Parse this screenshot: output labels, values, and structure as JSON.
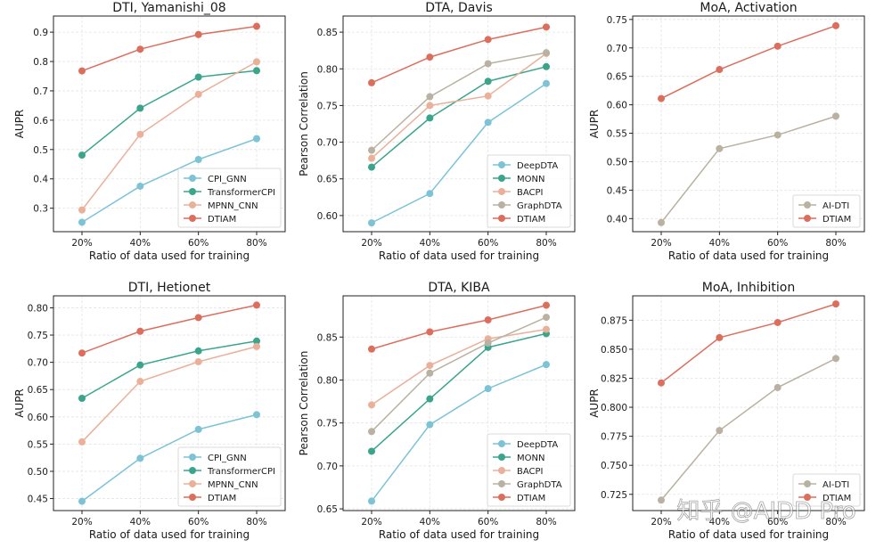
{
  "colors": {
    "CPI_GNN": "#7cc3d6",
    "DeepDTA": "#7cc3d6",
    "TransformerCPI": "#3aa58b",
    "MONN": "#3aa58b",
    "MPNN_CNN": "#eab09a",
    "BACPI": "#eab09a",
    "GraphDTA": "#b9b2a2",
    "AI-DTI": "#b9b2a2",
    "DTIAM": "#dc6e5e"
  },
  "watermark": "知乎 @AIDD Pro",
  "chart_data": [
    {
      "type": "line",
      "title": "DTI, Yamanishi_08",
      "xlabel": "Ratio of data used for training",
      "ylabel": "AUPR",
      "categories": [
        "20%",
        "40%",
        "60%",
        "80%"
      ],
      "ylim": [
        0.22,
        0.955
      ],
      "yticks": [
        0.3,
        0.4,
        0.5,
        0.6,
        0.7,
        0.8,
        0.9
      ],
      "ytick_labels": [
        "0.3",
        "0.4",
        "0.5",
        "0.6",
        "0.7",
        "0.8",
        "0.9"
      ],
      "grid": true,
      "legend": "lower-right",
      "series": [
        {
          "name": "CPI_GNN",
          "values": [
            0.252,
            0.375,
            0.466,
            0.537
          ]
        },
        {
          "name": "TransformerCPI",
          "values": [
            0.481,
            0.641,
            0.747,
            0.769
          ]
        },
        {
          "name": "MPNN_CNN",
          "values": [
            0.294,
            0.552,
            0.688,
            0.799
          ]
        },
        {
          "name": "DTIAM",
          "values": [
            0.768,
            0.842,
            0.892,
            0.92
          ]
        }
      ]
    },
    {
      "type": "line",
      "title": "DTA, Davis",
      "xlabel": "Ratio of data used for training",
      "ylabel": "Pearson Correlation",
      "categories": [
        "20%",
        "40%",
        "60%",
        "80%"
      ],
      "ylim": [
        0.578,
        0.872
      ],
      "yticks": [
        0.6,
        0.65,
        0.7,
        0.75,
        0.8,
        0.85
      ],
      "ytick_labels": [
        "0.60",
        "0.65",
        "0.70",
        "0.75",
        "0.80",
        "0.85"
      ],
      "grid": true,
      "legend": "lower-right",
      "series": [
        {
          "name": "DeepDTA",
          "values": [
            0.59,
            0.63,
            0.727,
            0.78
          ]
        },
        {
          "name": "MONN",
          "values": [
            0.666,
            0.733,
            0.783,
            0.803
          ]
        },
        {
          "name": "BACPI",
          "values": [
            0.678,
            0.75,
            0.763,
            0.821
          ]
        },
        {
          "name": "GraphDTA",
          "values": [
            0.689,
            0.762,
            0.807,
            0.822
          ]
        },
        {
          "name": "DTIAM",
          "values": [
            0.781,
            0.816,
            0.84,
            0.857
          ]
        }
      ]
    },
    {
      "type": "line",
      "title": "MoA, Activation",
      "xlabel": "Ratio of data used for training",
      "ylabel": "AUPR",
      "categories": [
        "20%",
        "40%",
        "60%",
        "80%"
      ],
      "ylim": [
        0.377,
        0.756
      ],
      "yticks": [
        0.4,
        0.45,
        0.5,
        0.55,
        0.6,
        0.65,
        0.7,
        0.75
      ],
      "ytick_labels": [
        "0.40",
        "0.45",
        "0.50",
        "0.55",
        "0.60",
        "0.65",
        "0.70",
        "0.75"
      ],
      "grid": true,
      "legend": "lower-right",
      "series": [
        {
          "name": "AI-DTI",
          "values": [
            0.393,
            0.523,
            0.547,
            0.58
          ]
        },
        {
          "name": "DTIAM",
          "values": [
            0.611,
            0.662,
            0.703,
            0.739
          ]
        }
      ]
    },
    {
      "type": "line",
      "title": "DTI, Hetionet",
      "xlabel": "Ratio of data used for training",
      "ylabel": "AUPR",
      "categories": [
        "20%",
        "40%",
        "60%",
        "80%"
      ],
      "ylim": [
        0.428,
        0.822
      ],
      "yticks": [
        0.45,
        0.5,
        0.55,
        0.6,
        0.65,
        0.7,
        0.75,
        0.8
      ],
      "ytick_labels": [
        "0.45",
        "0.50",
        "0.55",
        "0.60",
        "0.65",
        "0.70",
        "0.75",
        "0.80"
      ],
      "grid": true,
      "legend": "lower-right",
      "series": [
        {
          "name": "CPI_GNN",
          "values": [
            0.445,
            0.524,
            0.577,
            0.604
          ]
        },
        {
          "name": "TransformerCPI",
          "values": [
            0.634,
            0.695,
            0.721,
            0.739
          ]
        },
        {
          "name": "MPNN_CNN",
          "values": [
            0.554,
            0.665,
            0.701,
            0.729
          ]
        },
        {
          "name": "DTIAM",
          "values": [
            0.717,
            0.757,
            0.782,
            0.805
          ]
        }
      ]
    },
    {
      "type": "line",
      "title": "DTA, KIBA",
      "xlabel": "Ratio of data used for training",
      "ylabel": "Pearson Correlation",
      "categories": [
        "20%",
        "40%",
        "60%",
        "80%"
      ],
      "ylim": [
        0.648,
        0.898
      ],
      "yticks": [
        0.65,
        0.7,
        0.75,
        0.8,
        0.85
      ],
      "ytick_labels": [
        "0.65",
        "0.70",
        "0.75",
        "0.80",
        "0.85"
      ],
      "grid": true,
      "legend": "lower-right",
      "series": [
        {
          "name": "DeepDTA",
          "values": [
            0.659,
            0.748,
            0.79,
            0.818
          ]
        },
        {
          "name": "MONN",
          "values": [
            0.717,
            0.778,
            0.838,
            0.854
          ]
        },
        {
          "name": "BACPI",
          "values": [
            0.771,
            0.817,
            0.848,
            0.859
          ]
        },
        {
          "name": "GraphDTA",
          "values": [
            0.74,
            0.808,
            0.843,
            0.873
          ]
        },
        {
          "name": "DTIAM",
          "values": [
            0.836,
            0.856,
            0.87,
            0.887
          ]
        }
      ]
    },
    {
      "type": "line",
      "title": "MoA, Inhibition",
      "xlabel": "Ratio of data used for training",
      "ylabel": "AUPR",
      "categories": [
        "20%",
        "40%",
        "60%",
        "80%"
      ],
      "ylim": [
        0.711,
        0.896
      ],
      "yticks": [
        0.725,
        0.75,
        0.775,
        0.8,
        0.825,
        0.85,
        0.875
      ],
      "ytick_labels": [
        "0.725",
        "0.750",
        "0.775",
        "0.800",
        "0.825",
        "0.850",
        "0.875"
      ],
      "grid": true,
      "legend": "lower-right",
      "series": [
        {
          "name": "AI-DTI",
          "values": [
            0.72,
            0.78,
            0.817,
            0.842
          ]
        },
        {
          "name": "DTIAM",
          "values": [
            0.821,
            0.86,
            0.873,
            0.889
          ]
        }
      ]
    }
  ]
}
